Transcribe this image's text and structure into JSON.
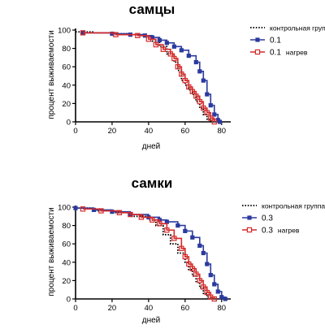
{
  "chart_data": [
    {
      "type": "line",
      "title": "самцы",
      "xlabel": "дней",
      "ylabel": "процент выживаемости",
      "xlim": [
        0,
        85
      ],
      "ylim": [
        0,
        100
      ],
      "xticks": [
        "0",
        "20",
        "40",
        "60",
        "80"
      ],
      "yticks": [
        "0",
        "20",
        "40",
        "60",
        "80",
        "100"
      ],
      "legend_position": "top-right",
      "series": [
        {
          "name": "контрольная группа",
          "color": "#000000",
          "style": "dotted",
          "marker": "none",
          "legend_main": "контрольная группа",
          "legend_small": "",
          "points": [
            [
              0,
              98
            ],
            [
              10,
              97
            ],
            [
              20,
              96
            ],
            [
              30,
              95
            ],
            [
              38,
              93
            ],
            [
              42,
              88
            ],
            [
              46,
              82
            ],
            [
              50,
              74
            ],
            [
              54,
              65
            ],
            [
              56,
              56
            ],
            [
              58,
              45
            ],
            [
              60,
              40
            ],
            [
              62,
              35
            ],
            [
              64,
              30
            ],
            [
              66,
              22
            ],
            [
              68,
              15
            ],
            [
              70,
              8
            ],
            [
              72,
              3
            ],
            [
              74,
              0
            ]
          ]
        },
        {
          "name": "0.1",
          "color": "#2b3a9e",
          "style": "solid",
          "marker": "filled-square",
          "legend_main": "0.1",
          "legend_small": "",
          "points": [
            [
              4,
              97
            ],
            [
              20,
              96
            ],
            [
              30,
              95
            ],
            [
              38,
              94
            ],
            [
              42,
              92
            ],
            [
              46,
              89
            ],
            [
              50,
              86
            ],
            [
              54,
              82
            ],
            [
              58,
              78
            ],
            [
              62,
              72
            ],
            [
              66,
              65
            ],
            [
              68,
              55
            ],
            [
              70,
              45
            ],
            [
              72,
              30
            ],
            [
              74,
              18
            ],
            [
              76,
              8
            ],
            [
              78,
              2
            ],
            [
              79,
              0
            ]
          ]
        },
        {
          "name": "0.1 нагрев",
          "color": "#d42a2a",
          "style": "solid",
          "marker": "open-square",
          "legend_main": "0.1",
          "legend_small": "нагрев",
          "points": [
            [
              4,
              97
            ],
            [
              22,
              95
            ],
            [
              34,
              94
            ],
            [
              40,
              90
            ],
            [
              44,
              84
            ],
            [
              48,
              79
            ],
            [
              52,
              74
            ],
            [
              54,
              69
            ],
            [
              56,
              60
            ],
            [
              58,
              52
            ],
            [
              60,
              45
            ],
            [
              62,
              38
            ],
            [
              64,
              33
            ],
            [
              66,
              28
            ],
            [
              68,
              22
            ],
            [
              70,
              15
            ],
            [
              72,
              10
            ],
            [
              74,
              4
            ],
            [
              76,
              0
            ]
          ]
        }
      ]
    },
    {
      "type": "line",
      "title": "самки",
      "xlabel": "дней",
      "ylabel": "процент выживаемости",
      "xlim": [
        0,
        85
      ],
      "ylim": [
        0,
        100
      ],
      "xticks": [
        "0",
        "20",
        "40",
        "60",
        "80"
      ],
      "yticks": [
        "0",
        "20",
        "40",
        "60",
        "80",
        "100"
      ],
      "legend_position": "top-right",
      "series": [
        {
          "name": "контрольная группа",
          "color": "#000000",
          "style": "dotted",
          "marker": "none",
          "legend_main": "контрольная группа",
          "legend_small": "",
          "points": [
            [
              0,
              99
            ],
            [
              10,
              96
            ],
            [
              20,
              94
            ],
            [
              30,
              90
            ],
            [
              40,
              86
            ],
            [
              44,
              80
            ],
            [
              48,
              70
            ],
            [
              52,
              60
            ],
            [
              56,
              50
            ],
            [
              60,
              40
            ],
            [
              62,
              32
            ],
            [
              64,
              25
            ],
            [
              66,
              18
            ],
            [
              68,
              12
            ],
            [
              70,
              6
            ],
            [
              72,
              2
            ],
            [
              74,
              0
            ]
          ]
        },
        {
          "name": "0.3",
          "color": "#2b3a9e",
          "style": "solid",
          "marker": "filled-square",
          "legend_main": "0.3",
          "legend_small": "",
          "points": [
            [
              0,
              99
            ],
            [
              10,
              97
            ],
            [
              20,
              95
            ],
            [
              30,
              92
            ],
            [
              40,
              89
            ],
            [
              46,
              86
            ],
            [
              50,
              84
            ],
            [
              56,
              80
            ],
            [
              60,
              74
            ],
            [
              64,
              67
            ],
            [
              68,
              58
            ],
            [
              70,
              50
            ],
            [
              72,
              38
            ],
            [
              74,
              26
            ],
            [
              76,
              16
            ],
            [
              78,
              8
            ],
            [
              80,
              2
            ],
            [
              82,
              0
            ]
          ]
        },
        {
          "name": "0.3 нагрев",
          "color": "#d42a2a",
          "style": "solid",
          "marker": "open-square",
          "legend_main": "0.3",
          "legend_small": "нагрев",
          "points": [
            [
              4,
              98
            ],
            [
              14,
              96
            ],
            [
              24,
              94
            ],
            [
              30,
              92
            ],
            [
              36,
              89
            ],
            [
              42,
              86
            ],
            [
              46,
              82
            ],
            [
              50,
              75
            ],
            [
              54,
              66
            ],
            [
              58,
              55
            ],
            [
              60,
              46
            ],
            [
              62,
              38
            ],
            [
              64,
              33
            ],
            [
              66,
              27
            ],
            [
              68,
              20
            ],
            [
              70,
              13
            ],
            [
              72,
              7
            ],
            [
              74,
              2
            ],
            [
              76,
              0
            ]
          ]
        }
      ]
    }
  ]
}
